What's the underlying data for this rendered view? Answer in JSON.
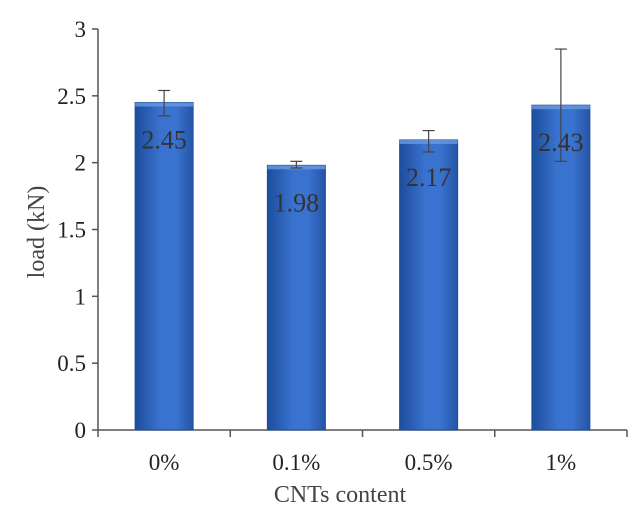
{
  "chart_data": {
    "type": "bar",
    "categories": [
      "0%",
      "0.1%",
      "0.5%",
      "1%"
    ],
    "values": [
      2.45,
      1.98,
      2.17,
      2.43
    ],
    "error_high": [
      2.54,
      2.01,
      2.24,
      2.85
    ],
    "error_low": [
      2.35,
      1.96,
      2.08,
      2.01
    ],
    "data_labels": [
      "2.45",
      "1.98",
      "2.17",
      "2.43"
    ],
    "title": "",
    "xlabel": "CNTs content",
    "ylabel": "load (kN)",
    "ylim": [
      0,
      3
    ],
    "yticks": [
      0,
      0.5,
      1,
      1.5,
      2,
      2.5,
      3
    ],
    "ytick_labels": [
      "0",
      "0.5",
      "1",
      "1.5",
      "2",
      "2.5",
      "3"
    ],
    "grid": false,
    "legend": "none",
    "colors": {
      "bar_light": "#6a9ae0",
      "bar_mid": "#2f68c4",
      "bar_dark": "#1d4d9c",
      "axis": "#555555",
      "error_bar": "#444444"
    }
  }
}
